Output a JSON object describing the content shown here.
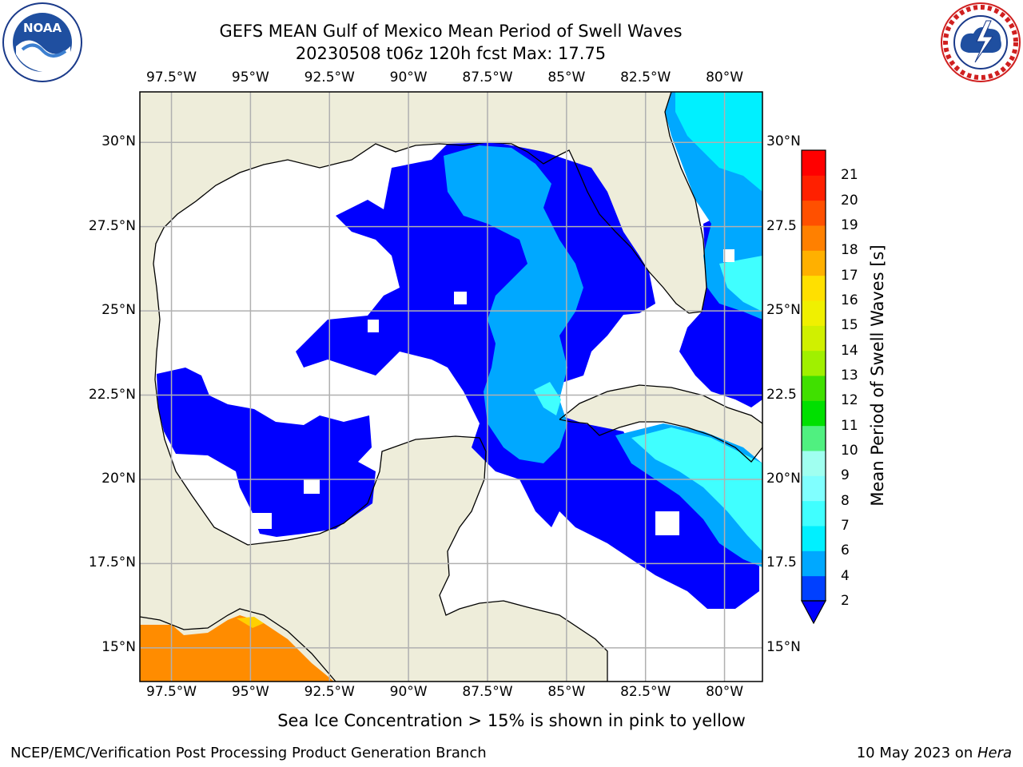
{
  "title": {
    "line1": "GEFS MEAN Gulf of Mexico Mean Period of Swell Waves",
    "line2": "20230508 t06z 120h fcst   Max: 17.75"
  },
  "map": {
    "region": "Gulf of Mexico",
    "lon_range": [
      -98.5,
      -78.8
    ],
    "lat_range": [
      14.0,
      31.5
    ],
    "lon_ticks": [
      "97.5°W",
      "95°W",
      "92.5°W",
      "90°W",
      "87.5°W",
      "85°W",
      "82.5°W",
      "80°W"
    ],
    "lat_ticks_left": [
      "30°N",
      "27.5°N",
      "25°N",
      "22.5°N",
      "20°N",
      "17.5°N",
      "15°N"
    ],
    "lat_ticks_right": [
      "30°N",
      "27.5",
      "25°N",
      "22.5",
      "20°N",
      "17.5",
      "15°N"
    ],
    "grid": true,
    "colors": {
      "land": "#eeedda",
      "ocean_no_data": "#ffffff",
      "gridline": "#b0b0b0",
      "coastline": "#000000"
    }
  },
  "colorbar": {
    "label": "Mean Period of Swell Waves [s]",
    "unit": "s",
    "levels": [
      "2",
      "4",
      "6",
      "7",
      "8",
      "9",
      "10",
      "11",
      "12",
      "13",
      "14",
      "15",
      "16",
      "17",
      "18",
      "19",
      "20",
      "21"
    ],
    "colors": [
      "#0040ff",
      "#00a8ff",
      "#00f0ff",
      "#40ffff",
      "#80ffff",
      "#a0fff0",
      "#50f080",
      "#00e000",
      "#40e000",
      "#a0f000",
      "#d0f000",
      "#f0f000",
      "#ffe000",
      "#ffb000",
      "#ff8000",
      "#ff5000",
      "#ff2000",
      "#ff0000"
    ],
    "under_color": "#0000ff",
    "extend": "min"
  },
  "subtitle": "Sea Ice Concentration > 15% is shown in pink to yellow",
  "footer": {
    "left": "NCEP/EMC/Verification Post Processing Product Generation Branch",
    "right_date": "10 May 2023 on ",
    "right_host": "Hera"
  },
  "logos": {
    "left": "NOAA",
    "right": "NATIONAL WEATHER SERVICE"
  }
}
